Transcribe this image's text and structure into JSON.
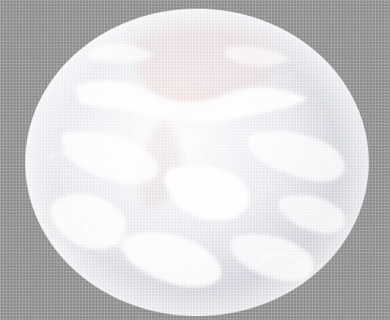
{
  "image": {
    "subject": "globe",
    "background_color": "#8c8c8c",
    "grid_color": "#ffffff",
    "globe_colors": {
      "highlight": "#ffffff",
      "mid": "#e6e8ee",
      "shade": "#c9ccd4",
      "edge": "#b7bac2",
      "land_tint": "#e9d6d2"
    }
  }
}
